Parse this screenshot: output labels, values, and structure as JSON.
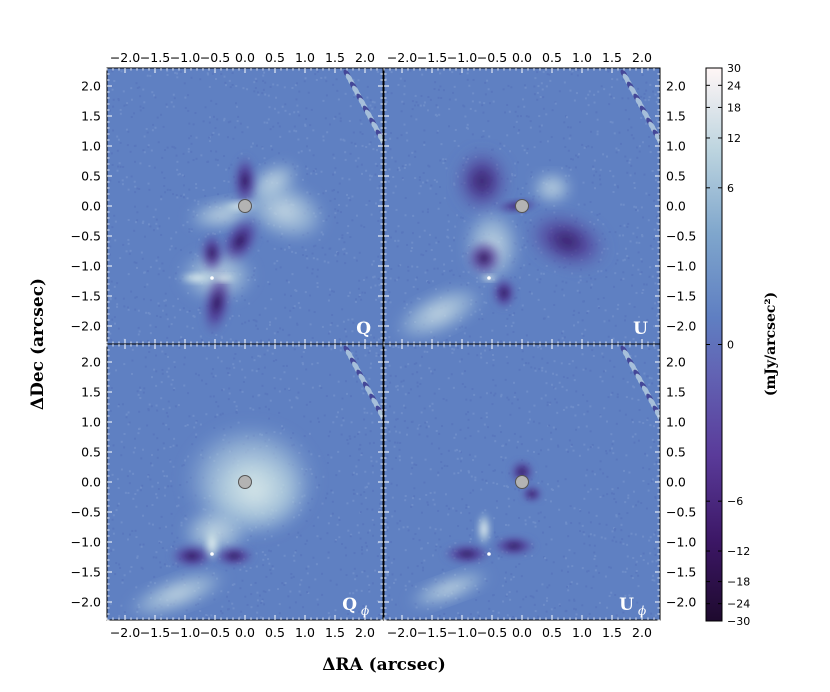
{
  "chart_data": {
    "type": "heatmap",
    "title": "",
    "xlabel": "ΔRA (arcsec)",
    "ylabel": "ΔDec (arcsec)",
    "xlim": [
      -2.3,
      2.3
    ],
    "ylim": [
      -2.3,
      2.3
    ],
    "x_tick_values": [
      -2.0,
      -1.5,
      -1.0,
      -0.5,
      0.0,
      0.5,
      1.0,
      1.5,
      2.0
    ],
    "x_tick_labels": [
      "−2.0",
      "−1.5",
      "−1.0",
      "−0.5",
      "0.0",
      "0.5",
      "1.0",
      "1.5",
      "2.0"
    ],
    "y_tick_values": [
      2.0,
      1.5,
      1.0,
      0.5,
      0.0,
      -0.5,
      -1.0,
      -1.5,
      -2.0
    ],
    "y_tick_labels": [
      "2.0",
      "1.5",
      "1.0",
      "0.5",
      "0.0",
      "−0.5",
      "−1.0",
      "−1.5",
      "−2.0"
    ],
    "panels": [
      {
        "label": "Q",
        "subscript": "",
        "position": "top-left"
      },
      {
        "label": "U",
        "subscript": "",
        "position": "top-right"
      },
      {
        "label": "Q",
        "subscript": "ϕ",
        "position": "bottom-left"
      },
      {
        "label": "U",
        "subscript": "ϕ",
        "position": "bottom-right"
      }
    ],
    "colorbar": {
      "label": "(mJy/arcsec²)",
      "range": [
        -30,
        30
      ],
      "scale": "symmetric-log",
      "tick_values": [
        30,
        24,
        18,
        12,
        6,
        0,
        -6,
        -12,
        -18,
        -24,
        -30
      ],
      "tick_labels": [
        "30",
        "24",
        "18",
        "12",
        "6",
        "0",
        "−6",
        "−12",
        "−18",
        "−24",
        "−30"
      ],
      "colors": [
        "#1e0a2e",
        "#4a1f84",
        "#6e5fb3",
        "#5e7cc0",
        "#b0cbdc",
        "#fff6f6"
      ]
    },
    "sources": [
      {
        "name": "primary",
        "x": 0.0,
        "y": 0.0,
        "masked": true
      },
      {
        "name": "companion",
        "x": -0.55,
        "y": -1.2,
        "masked": false
      }
    ]
  }
}
